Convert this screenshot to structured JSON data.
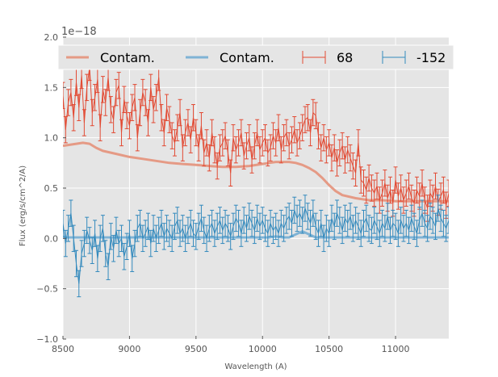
{
  "chart_data": {
    "type": "line",
    "title": "",
    "xlabel": "Wavelength (A)",
    "ylabel": "Flux (erg/s/cm^2/A)",
    "y_offset_label": "1e−18",
    "xlim": [
      8500,
      11400
    ],
    "ylim": [
      -1.0,
      2.0
    ],
    "y_scale_exponent": -18,
    "grid": true,
    "legend_placement": "top",
    "xticks": [
      8500,
      9000,
      9500,
      10000,
      10500,
      11000
    ],
    "xtick_labels": [
      "8500",
      "9000",
      "9500",
      "10000",
      "10500",
      "11000"
    ],
    "yticks": [
      -1.0,
      -0.5,
      0.0,
      0.5,
      1.0,
      1.5,
      2.0
    ],
    "ytick_labels": [
      "−1.0",
      "−0.5",
      "0.0",
      "0.5",
      "1.0",
      "1.5",
      "2.0"
    ],
    "legend": [
      {
        "label": "Contam.",
        "kind": "line",
        "color": "#e59a85"
      },
      {
        "label": "Contam.",
        "kind": "line",
        "color": "#7fb3d5"
      },
      {
        "label": "68",
        "kind": "errorbar",
        "color": "#e24a33"
      },
      {
        "label": "-152",
        "kind": "errorbar",
        "color": "#348abd"
      }
    ],
    "series": [
      {
        "name": "68",
        "kind": "errorbar",
        "color": "#e24a33",
        "x_start": 8500,
        "x_step": 20,
        "y": [
          1.42,
          1.08,
          1.35,
          1.45,
          1.2,
          1.55,
          1.3,
          1.62,
          1.15,
          1.5,
          1.7,
          1.25,
          1.4,
          1.58,
          1.1,
          1.48,
          1.35,
          1.6,
          1.28,
          1.18,
          1.45,
          1.52,
          1.05,
          1.38,
          1.22,
          1.12,
          1.3,
          1.4,
          1.0,
          1.25,
          1.45,
          1.35,
          1.15,
          1.5,
          1.28,
          1.4,
          1.6,
          1.2,
          1.05,
          1.3,
          1.18,
          1.02,
          0.95,
          1.1,
          1.25,
          0.9,
          1.05,
          1.15,
          0.98,
          1.2,
          1.05,
          0.9,
          1.12,
          0.85,
          0.95,
          0.8,
          1.05,
          0.88,
          0.72,
          0.9,
          0.95,
          1.02,
          0.85,
          0.65,
          1.0,
          0.88,
          0.95,
          1.05,
          0.82,
          0.92,
          1.0,
          0.78,
          0.92,
          1.05,
          0.88,
          0.95,
          1.0,
          0.85,
          0.9,
          1.02,
          0.95,
          1.1,
          0.88,
          1.0,
          1.05,
          0.92,
          0.98,
          1.08,
          0.95,
          1.02,
          1.1,
          1.18,
          1.2,
          1.05,
          1.25,
          1.22,
          1.02,
          0.9,
          1.0,
          0.88,
          0.95,
          0.8,
          0.9,
          0.75,
          0.85,
          0.92,
          0.78,
          0.88,
          0.8,
          0.72,
          0.65,
          0.95,
          0.58,
          0.55,
          0.48,
          0.6,
          0.5,
          0.45,
          0.52,
          0.38,
          0.45,
          0.55,
          0.4,
          0.48,
          0.35,
          0.58,
          0.42,
          0.5,
          0.38,
          0.45,
          0.52,
          0.4,
          0.35,
          0.48,
          0.42,
          0.55,
          0.38,
          0.3,
          0.45,
          0.4,
          0.52,
          0.36,
          0.42,
          0.48,
          0.33,
          0.45
        ],
        "yerr": 0.13
      },
      {
        "name": "-152",
        "kind": "errorbar",
        "color": "#348abd",
        "x_start": 8500,
        "x_step": 20,
        "y": [
          0.15,
          -0.05,
          0.1,
          0.25,
          0.0,
          -0.25,
          -0.45,
          -0.15,
          -0.05,
          0.08,
          -0.02,
          -0.12,
          0.05,
          -0.2,
          0.0,
          0.1,
          -0.15,
          -0.28,
          0.02,
          -0.1,
          0.08,
          -0.05,
          0.0,
          -0.18,
          -0.08,
          0.05,
          -0.2,
          -0.05,
          0.1,
          0.15,
          0.0,
          0.05,
          0.12,
          -0.05,
          0.1,
          0.0,
          0.08,
          0.15,
          0.02,
          0.1,
          0.05,
          0.0,
          0.12,
          0.18,
          0.05,
          0.1,
          0.0,
          0.08,
          0.15,
          0.05,
          0.02,
          0.12,
          0.2,
          0.08,
          0.0,
          0.1,
          0.15,
          0.05,
          0.12,
          0.18,
          0.08,
          0.15,
          0.1,
          0.02,
          0.12,
          0.2,
          0.15,
          0.05,
          0.18,
          0.1,
          0.22,
          0.15,
          0.08,
          0.2,
          0.12,
          0.18,
          0.1,
          0.05,
          0.15,
          0.08,
          0.12,
          0.05,
          0.15,
          0.1,
          0.18,
          0.22,
          0.15,
          0.28,
          0.2,
          0.25,
          0.18,
          0.3,
          0.22,
          0.15,
          0.25,
          0.12,
          0.05,
          0.15,
          0.0,
          0.1,
          0.05,
          0.2,
          0.12,
          0.25,
          0.18,
          0.08,
          0.2,
          0.15,
          0.22,
          0.1,
          0.18,
          0.12,
          0.05,
          0.15,
          0.2,
          0.1,
          0.08,
          0.18,
          0.12,
          0.05,
          0.15,
          0.1,
          0.22,
          0.08,
          0.15,
          0.12,
          0.05,
          0.18,
          0.1,
          0.15,
          0.08,
          0.2,
          0.12,
          0.05,
          0.18,
          0.25,
          0.15,
          0.1,
          0.22,
          0.18,
          0.12,
          0.3,
          0.2,
          0.15,
          0.1,
          0.18
        ],
        "yerr": 0.13
      },
      {
        "name": "Contam. (68)",
        "kind": "line",
        "color": "#e59a85",
        "x": [
          8500,
          8550,
          8600,
          8650,
          8700,
          8750,
          8800,
          8900,
          9000,
          9100,
          9200,
          9300,
          9400,
          9500,
          9600,
          9700,
          9800,
          9900,
          10000,
          10050,
          10100,
          10150,
          10200,
          10250,
          10300,
          10350,
          10400,
          10450,
          10500,
          10550,
          10600,
          10700,
          10800,
          10900,
          11000,
          11100,
          11200,
          11300,
          11400
        ],
        "y": [
          0.92,
          0.93,
          0.94,
          0.95,
          0.94,
          0.9,
          0.87,
          0.84,
          0.81,
          0.79,
          0.77,
          0.75,
          0.74,
          0.73,
          0.72,
          0.71,
          0.71,
          0.72,
          0.74,
          0.75,
          0.76,
          0.76,
          0.76,
          0.75,
          0.73,
          0.7,
          0.66,
          0.6,
          0.53,
          0.47,
          0.43,
          0.4,
          0.38,
          0.38,
          0.37,
          0.37,
          0.37,
          0.37,
          0.37
        ]
      },
      {
        "name": "Contam. (-152)",
        "kind": "line",
        "color": "#7fb3d5",
        "x": [
          8500,
          9000,
          9500,
          10000,
          10050,
          10100,
          10150,
          10200,
          10250,
          10300,
          10350,
          10400,
          10450,
          10500,
          11000,
          11400
        ],
        "y": [
          0.01,
          0.01,
          0.01,
          0.01,
          0.01,
          0.02,
          0.01,
          0.01,
          0.04,
          0.07,
          0.04,
          0.01,
          0.01,
          0.01,
          0.01,
          0.01
        ]
      }
    ]
  }
}
